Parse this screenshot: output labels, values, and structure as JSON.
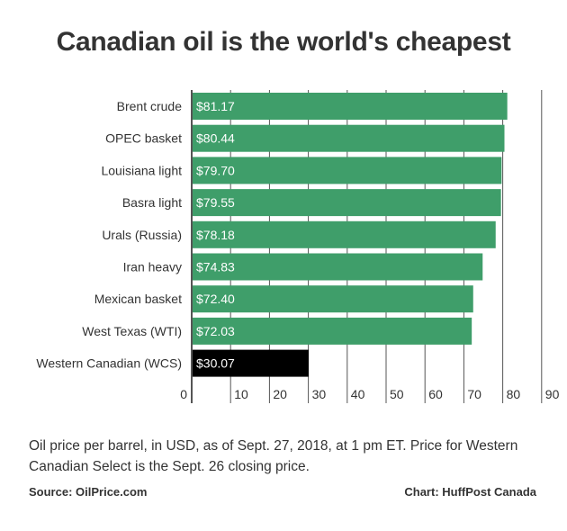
{
  "title": "Canadian oil is the world's cheapest",
  "caption": "Oil price per barrel, in USD, as of Sept. 27, 2018, at 1 pm ET. Price for Western Canadian Select is the Sept. 26 closing price.",
  "source": "Source: OilPrice.com",
  "credit": "Chart: HuffPost Canada",
  "colors": {
    "bar": "#3f9e6a",
    "highlight": "#000000",
    "grid": "#555555"
  },
  "chart_data": {
    "type": "bar",
    "orientation": "horizontal",
    "categories": [
      "Brent crude",
      "OPEC basket",
      "Louisiana light",
      "Basra light",
      "Urals (Russia)",
      "Iran heavy",
      "Mexican basket",
      "West Texas (WTI)",
      "Western Canadian (WCS)"
    ],
    "values": [
      81.17,
      80.44,
      79.7,
      79.55,
      78.18,
      74.83,
      72.4,
      72.03,
      30.07
    ],
    "value_labels": [
      "$81.17",
      "$80.44",
      "$79.70",
      "$79.55",
      "$78.18",
      "$74.83",
      "$72.40",
      "$72.03",
      "$30.07"
    ],
    "highlight_category": "Western Canadian (WCS)",
    "xlim": [
      0,
      90
    ],
    "xticks": [
      0,
      10,
      20,
      30,
      40,
      50,
      60,
      70,
      80,
      90
    ],
    "grid": true
  }
}
